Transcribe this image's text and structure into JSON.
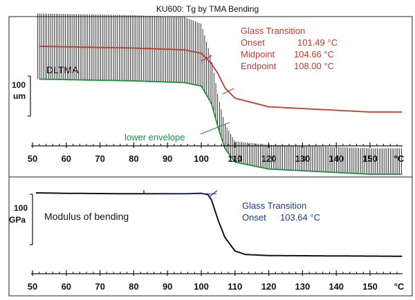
{
  "chart_data": {
    "title": "KU600: Tg by TMA Bending",
    "colors": {
      "osc": "#000000",
      "mean": "#c0392b",
      "envelope": "#1e8b3e",
      "modulus": "#111111",
      "glass_modulus": "#1a3a8c"
    },
    "charts": [
      {
        "type": "line",
        "series_label": "DLTMA",
        "scale_bar": {
          "value": "100",
          "unit": "um"
        },
        "xlim": [
          50,
          160
        ],
        "x_unit": "°C",
        "x_ticks": [
          "50",
          "60",
          "70",
          "80",
          "90",
          "100",
          "110",
          "120",
          "130",
          "140",
          "150"
        ],
        "series": [
          {
            "role": "mean",
            "x": [
              52,
              80,
              95,
              100,
              103,
              105,
              107,
              110,
              120,
              150,
              160
            ],
            "y": [
              0,
              -5,
              -10,
              -20,
              -50,
              -80,
              -120,
              -150,
              -175,
              -190,
              -190
            ]
          },
          {
            "role": "lower_envelope",
            "x": [
              52,
              80,
              95,
              100,
              103,
              105,
              107,
              110,
              120,
              150,
              160
            ],
            "y": [
              -95,
              -100,
              -105,
              -115,
              -165,
              -235,
              -295,
              -335,
              -355,
              -370,
              -370
            ]
          }
        ],
        "oscillation_amplitude": {
          "x": [
            52,
            80,
            95,
            100,
            103,
            105,
            107,
            110,
            120,
            150,
            160
          ],
          "y": [
            190,
            190,
            190,
            180,
            130,
            90,
            70,
            60,
            70,
            75,
            75
          ]
        },
        "annotations": {
          "envelope_label": "lower envelope",
          "glass_transition": {
            "title": "Glass Transition",
            "rows": [
              {
                "label": "Onset",
                "value": "101.49 °C"
              },
              {
                "label": "Midpoint",
                "value": "104.66 °C"
              },
              {
                "label": "Endpoint",
                "value": "108.00 °C"
              }
            ]
          }
        }
      },
      {
        "type": "line",
        "series_label": "Modulus of bending",
        "scale_bar": {
          "value": "100",
          "unit": "GPa"
        },
        "xlim": [
          50,
          160
        ],
        "x_unit": "°C",
        "x_ticks": [
          "50",
          "60",
          "70",
          "80",
          "90",
          "100",
          "110",
          "120",
          "130",
          "140",
          "150"
        ],
        "series": [
          {
            "role": "modulus",
            "x": [
              51,
              60,
              80,
              95,
              100,
              102,
              103,
              105,
              107,
              110,
              113,
              120,
              160
            ],
            "y": [
              0,
              -2,
              -4,
              -4,
              -2,
              -8,
              -30,
              -120,
              -195,
              -255,
              -270,
              -275,
              -278
            ]
          }
        ],
        "annotations": {
          "glass_transition": {
            "title": "Glass Transition",
            "rows": [
              {
                "label": "Onset",
                "value": "103.64 °C"
              }
            ]
          }
        }
      }
    ]
  }
}
